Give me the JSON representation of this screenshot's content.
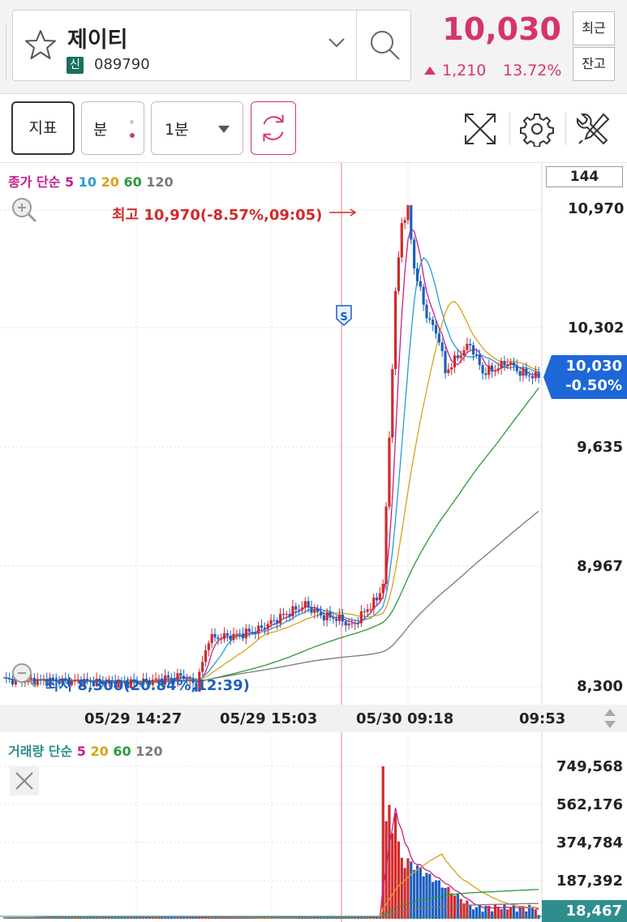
{
  "header": {
    "stock_name": "제이티",
    "badge": "신",
    "stock_code": "089790",
    "price": "10,030",
    "change_amount": "1,210",
    "change_pct": "13.72%",
    "recent_button": "최근",
    "balance_button": "잔고"
  },
  "toolbar": {
    "indicator_label": "지표",
    "period_label": "분",
    "interval_value": "1분"
  },
  "chart": {
    "visible_count": "144",
    "ma_legend": {
      "prefix": "종가 단순",
      "periods": [
        "5",
        "10",
        "20",
        "60",
        "120"
      ]
    },
    "y_labels": [
      "10,970",
      "10,302",
      "9,635",
      "8,967",
      "8,300"
    ],
    "current_price": "10,030",
    "current_change": "-0.50%",
    "high_annotation": "최고 10,970(-8.57%,09:05)",
    "low_annotation": "최저 8,300(20.84%,12:39)",
    "x_labels": [
      "05/29 14:27",
      "05/29 15:03",
      "05/30 09:18",
      "09:53"
    ],
    "signal_marker": "S"
  },
  "volume": {
    "legend": {
      "prefix": "거래량 단순",
      "periods": [
        "5",
        "20",
        "60",
        "120"
      ]
    },
    "y_labels": [
      "749,568",
      "562,176",
      "374,784",
      "187,392"
    ],
    "current_volume": "18,467"
  },
  "colors": {
    "up": "#d22a2a",
    "down": "#1d5fbf",
    "ma5": "#c2218f",
    "ma10": "#2a9bd8",
    "ma20": "#d6a317",
    "ma60": "#2a9a3a",
    "ma120": "#7a7a7a",
    "accent": "#d7336b"
  },
  "chart_data": {
    "type": "candlestick",
    "price_range": [
      8300,
      10970
    ],
    "volume_range": [
      0,
      749568
    ],
    "high": {
      "value": 10970,
      "time": "09:05"
    },
    "low": {
      "value": 8300,
      "time": "12:39"
    },
    "last_close": 10030,
    "last_volume": 18467
  }
}
